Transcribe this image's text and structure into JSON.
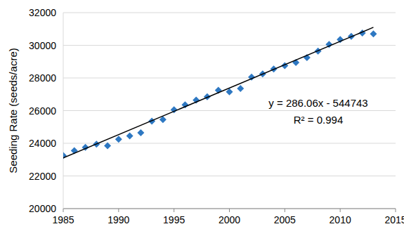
{
  "chart_data": {
    "type": "scatter",
    "y_label": "Seeding Rate (seeds/acre)",
    "annotations": [
      "y = 286.06x - 544743",
      "R² = 0.994"
    ],
    "x": [
      1985,
      1986,
      1987,
      1988,
      1989,
      1990,
      1991,
      1992,
      1993,
      1994,
      1995,
      1996,
      1997,
      1998,
      1999,
      2000,
      2001,
      2002,
      2003,
      2004,
      2005,
      2006,
      2007,
      2008,
      2009,
      2010,
      2011,
      2012,
      2013
    ],
    "series": [
      {
        "type": "scatter",
        "color": "#2e78c2",
        "marker": "diamond",
        "values": [
          23250,
          23550,
          23750,
          23950,
          23850,
          24250,
          24450,
          24650,
          25350,
          25450,
          26050,
          26350,
          26650,
          26850,
          27250,
          27150,
          27350,
          28050,
          28250,
          28550,
          28750,
          28950,
          29250,
          29650,
          30050,
          30350,
          30550,
          30750,
          30700
        ]
      },
      {
        "type": "line",
        "color": "#000000",
        "line_style": "solid",
        "x": [
          1985,
          2013
        ],
        "values": [
          23100,
          31100
        ]
      }
    ],
    "xlim": [
      1985,
      2015
    ],
    "xticks": [
      1985,
      1990,
      1995,
      2000,
      2005,
      2010,
      2015
    ],
    "ylim": [
      20000,
      32000
    ],
    "yticks": [
      20000,
      22000,
      24000,
      26000,
      28000,
      30000,
      32000
    ],
    "grid": true
  }
}
